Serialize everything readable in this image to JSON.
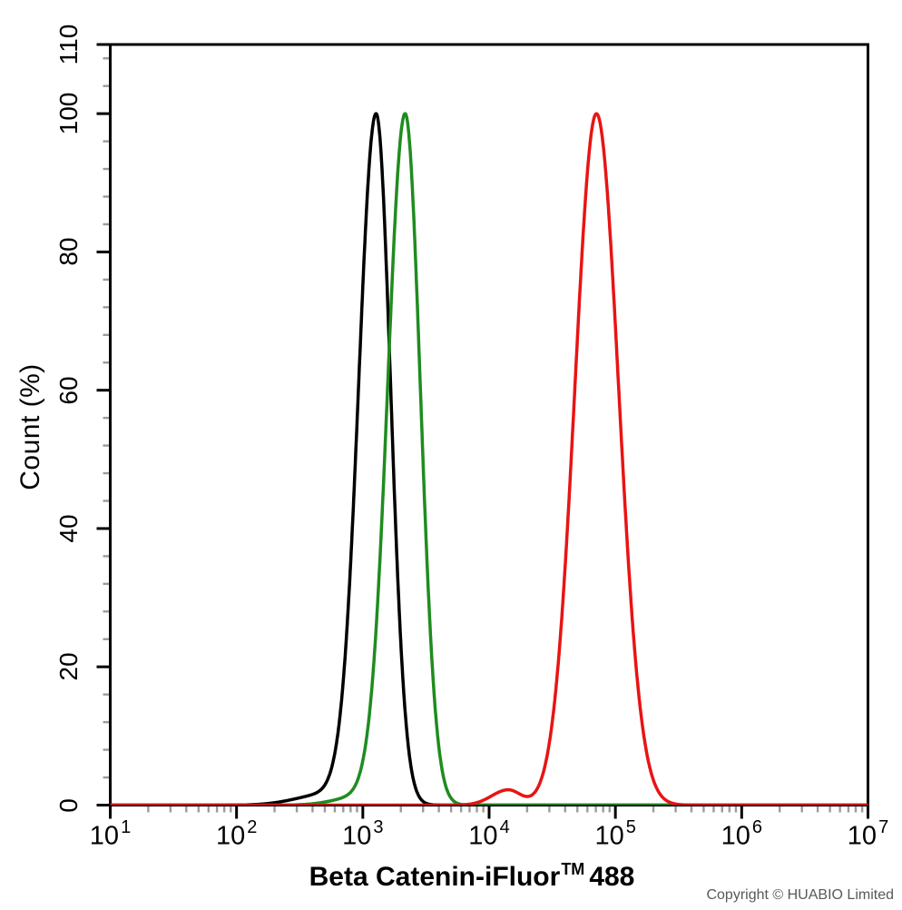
{
  "figure": {
    "background": "#ffffff",
    "y_axis_title": "Count (%)",
    "x_axis_title": {
      "main": "Beta Catenin-iFluor",
      "sup": "TM",
      "suffix": "488"
    },
    "copyright": "Copyright © HUABIO Limited"
  },
  "chart_data": {
    "type": "line",
    "subtype": "flow_cytometry_histogram",
    "title": "",
    "xlabel": "Beta Catenin-iFluor™ 488",
    "ylabel": "Count (%)",
    "x_scale": "log",
    "x_tick_base": "10",
    "x_decade_exponents": [
      1,
      2,
      3,
      4,
      5,
      6,
      7
    ],
    "x_minor_multiples": [
      2,
      3,
      4,
      5,
      6,
      7,
      8,
      9
    ],
    "xlim_log10": [
      1,
      7
    ],
    "ylim": [
      0,
      110
    ],
    "y_major_ticks": [
      0,
      20,
      40,
      60,
      80,
      100,
      110
    ],
    "y_minor_tick_step": 4,
    "grid": false,
    "legend_position": "none",
    "colors": {
      "axis": "#000000",
      "major_tick": "#000000",
      "minor_tick": "#9b9b9b",
      "copyright_text": "#595959"
    },
    "series": [
      {
        "name": "black-curve",
        "color": "#000000",
        "peak": {
          "x": 1300,
          "x_log10": 3.105,
          "y_percent": 100
        },
        "model_components": [
          {
            "center_log10": 3.105,
            "sigma_left": 0.138,
            "sigma_right": 0.115,
            "amplitude": 100
          },
          {
            "center_log10": 2.72,
            "sigma_left": 0.24,
            "sigma_right": 0.13,
            "amplitude": 1.6
          }
        ]
      },
      {
        "name": "green-curve",
        "color": "#1f8c1f",
        "peak": {
          "x": 2160,
          "x_log10": 3.335,
          "y_percent": 100
        },
        "model_components": [
          {
            "center_log10": 3.335,
            "sigma_left": 0.138,
            "sigma_right": 0.12,
            "amplitude": 100
          },
          {
            "center_log10": 2.98,
            "sigma_left": 0.2,
            "sigma_right": 0.1,
            "amplitude": 1.2
          }
        ]
      },
      {
        "name": "red-curve",
        "color": "#e81414",
        "peak": {
          "x": 71000,
          "x_log10": 4.85,
          "y_percent": 100
        },
        "model_components": [
          {
            "center_log10": 4.85,
            "sigma_left": 0.17,
            "sigma_right": 0.175,
            "amplitude": 100
          },
          {
            "center_log10": 4.15,
            "sigma_left": 0.13,
            "sigma_right": 0.1,
            "amplitude": 2.2
          }
        ]
      }
    ]
  }
}
